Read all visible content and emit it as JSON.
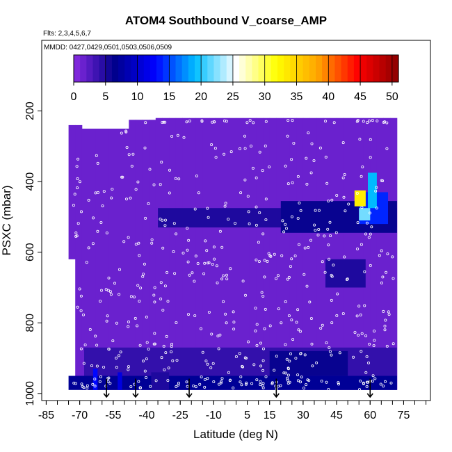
{
  "chart_data": {
    "type": "heatmap",
    "title": "ATOM4 Southbound V_coarse_AMP",
    "flights_note": "Flts: 2,3,4,5,6,7",
    "dates_note": "MMDD: 0427,0429,0501,0503,0506,0509",
    "xlabel": "Latitude (deg N)",
    "ylabel": "PSXC (mbar)",
    "xlim": [
      -87,
      87
    ],
    "ylim": [
      1020,
      0
    ],
    "x_ticks": [
      -85,
      -70,
      -55,
      -40,
      -25,
      -10,
      5,
      15,
      30,
      45,
      60,
      75
    ],
    "y_ticks": [
      200,
      400,
      600,
      800,
      1000
    ],
    "colorbar": {
      "ticks": [
        0,
        5,
        10,
        15,
        20,
        25,
        30,
        35,
        40,
        45,
        50
      ],
      "range": [
        0,
        51
      ],
      "colors": [
        "#8a2be2",
        "#00008b",
        "#0000ff",
        "#00bfff",
        "#ffffff",
        "#ffff00",
        "#ffa500",
        "#ff0000",
        "#8b0000"
      ]
    },
    "background_value": 1.5,
    "data_extent": {
      "lat_start": -75,
      "lat_end": 72,
      "p_top": 220,
      "p_bottom": 990
    },
    "high_cells": [
      {
        "lat": [
          -35,
          72
        ],
        "p": [
          475,
          530
        ],
        "value": 5
      },
      {
        "lat": [
          20,
          72
        ],
        "p": [
          455,
          545
        ],
        "value": 6
      },
      {
        "lat": [
          55,
          68
        ],
        "p": [
          430,
          520
        ],
        "value": 14
      },
      {
        "lat": [
          59,
          63
        ],
        "p": [
          375,
          475
        ],
        "value": 19
      },
      {
        "lat": [
          53,
          58
        ],
        "p": [
          425,
          470
        ],
        "value": 33
      },
      {
        "lat": [
          55,
          60
        ],
        "p": [
          475,
          510
        ],
        "value": 22
      },
      {
        "lat": [
          45,
          52
        ],
        "p": [
          640,
          680
        ],
        "value": 12
      },
      {
        "lat": [
          40,
          58
        ],
        "p": [
          620,
          700
        ],
        "value": 5
      },
      {
        "lat": [
          -68,
          72
        ],
        "p": [
          870,
          990
        ],
        "value": 4
      },
      {
        "lat": [
          15,
          50
        ],
        "p": [
          880,
          950
        ],
        "value": 6
      },
      {
        "lat": [
          -75,
          72
        ],
        "p": [
          950,
          990
        ],
        "value": 7
      },
      {
        "lat": [
          -64,
          -62
        ],
        "p": [
          930,
          990
        ],
        "value": 13
      },
      {
        "lat": [
          -53,
          -51
        ],
        "p": [
          940,
          990
        ],
        "value": 11
      },
      {
        "lat": [
          -38,
          -30
        ],
        "p": [
          940,
          990
        ],
        "value": 5
      }
    ],
    "profile_markers_lat": [
      -58,
      -45,
      -21,
      18,
      60
    ]
  }
}
